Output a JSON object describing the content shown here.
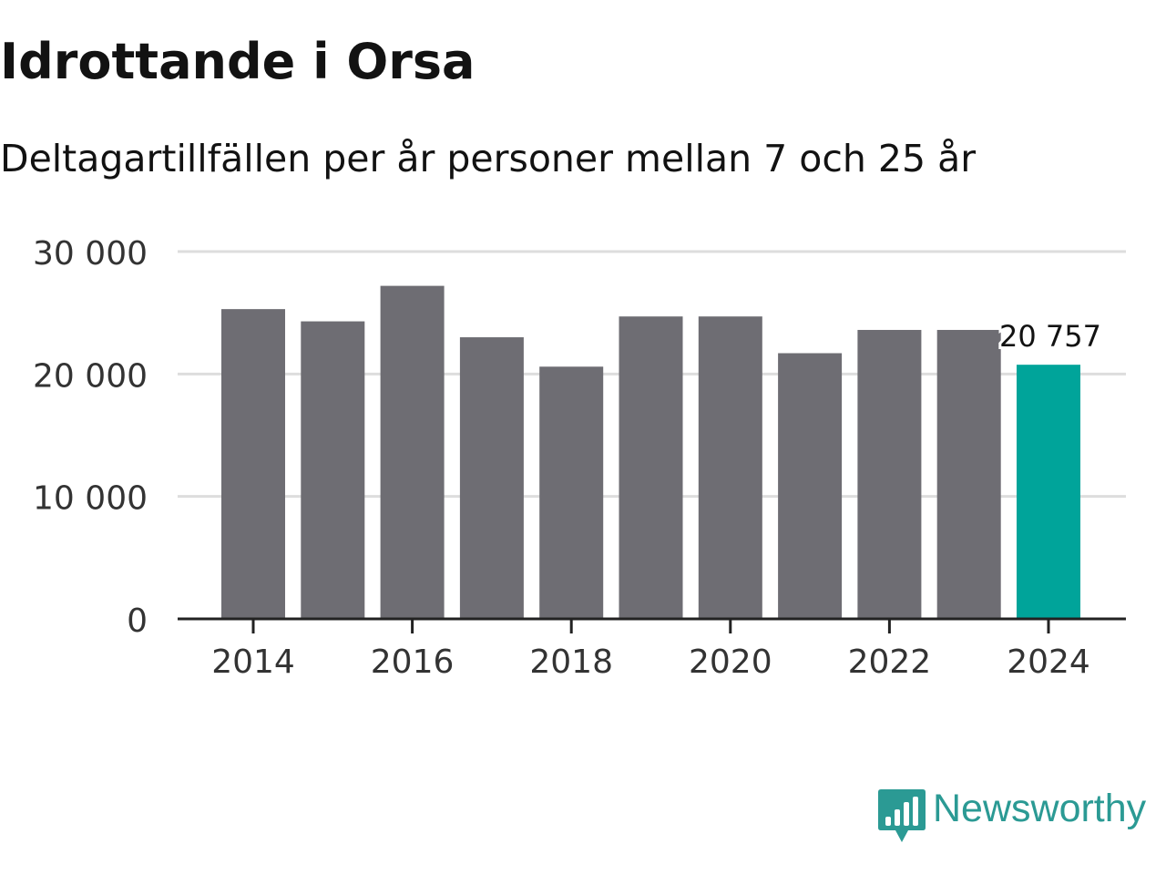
{
  "title": "Idrottande i Orsa",
  "subtitle": "Deltagartillfällen per år personer mellan 7 och 25 år",
  "brand": {
    "name": "Newsworthy",
    "icon": "newsworthy-logo-icon",
    "color": "#2b9a94"
  },
  "colors": {
    "bar": "#6e6d73",
    "highlight": "#00a49a",
    "grid": "#dddddd",
    "axis": "#222222"
  },
  "chart_data": {
    "type": "bar",
    "title": "Idrottande i Orsa",
    "subtitle": "Deltagartillfällen per år personer mellan 7 och 25 år",
    "xlabel": "",
    "ylabel": "",
    "categories": [
      "2014",
      "2015",
      "2016",
      "2017",
      "2018",
      "2019",
      "2020",
      "2021",
      "2022",
      "2023",
      "2024"
    ],
    "values": [
      25300,
      24300,
      27200,
      23000,
      20600,
      24700,
      24700,
      21700,
      23600,
      23600,
      20757
    ],
    "highlight_index": 10,
    "ylim": [
      0,
      30000
    ],
    "yticks": [
      0,
      10000,
      20000,
      30000
    ],
    "ytick_labels": [
      "0",
      "10 000",
      "20 000",
      "30 000"
    ],
    "xtick_labels": [
      "2014",
      "2016",
      "2018",
      "2020",
      "2022",
      "2024"
    ],
    "data_label": {
      "index": 10,
      "text": "20 757"
    },
    "grid": true
  }
}
